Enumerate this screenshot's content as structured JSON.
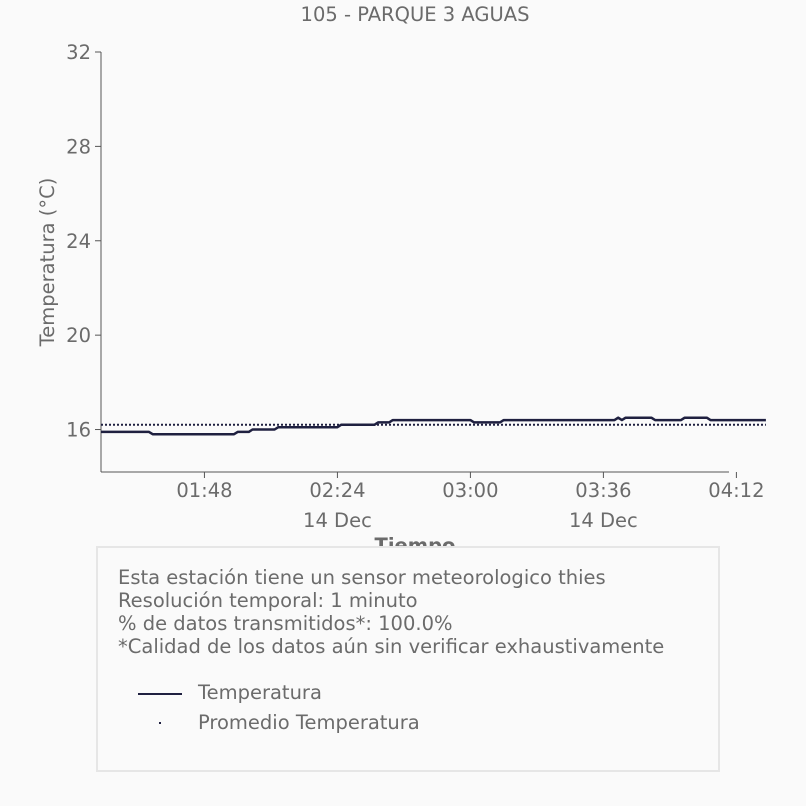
{
  "chart_data": {
    "type": "line",
    "title": "105 - PARQUE 3 AGUAS",
    "xlabel": "Tiempo",
    "ylabel": "Temperatura (°C)",
    "ylim": [
      14.2,
      32
    ],
    "xlim_minutes": [
      80,
      250
    ],
    "yticks": [
      "16",
      "20",
      "24",
      "28",
      "32"
    ],
    "ytick_values": [
      16,
      20,
      24,
      28,
      32
    ],
    "xticks": [
      {
        "label": "01:48",
        "sublabel": "",
        "time": "01:48"
      },
      {
        "label": "02:24",
        "sublabel": "14 Dec",
        "time": "02:24"
      },
      {
        "label": "03:00",
        "sublabel": "",
        "time": "03:00"
      },
      {
        "label": "03:36",
        "sublabel": "14 Dec",
        "time": "03:36"
      },
      {
        "label": "04:12",
        "sublabel": "",
        "time": "04:12"
      }
    ],
    "series": [
      {
        "name": "Temperatura",
        "color": "#1f2040",
        "style": "solid",
        "points": [
          [
            "01:20",
            15.9
          ],
          [
            "01:33",
            15.9
          ],
          [
            "01:34",
            15.8
          ],
          [
            "01:56",
            15.8
          ],
          [
            "01:57",
            15.9
          ],
          [
            "02:00",
            15.9
          ],
          [
            "02:01",
            16.0
          ],
          [
            "02:07",
            16.0
          ],
          [
            "02:08",
            16.1
          ],
          [
            "02:24",
            16.1
          ],
          [
            "02:25",
            16.2
          ],
          [
            "02:34",
            16.2
          ],
          [
            "02:35",
            16.3
          ],
          [
            "02:38",
            16.3
          ],
          [
            "02:39",
            16.4
          ],
          [
            "03:00",
            16.4
          ],
          [
            "03:01",
            16.3
          ],
          [
            "03:08",
            16.3
          ],
          [
            "03:09",
            16.4
          ],
          [
            "03:39",
            16.4
          ],
          [
            "03:40",
            16.5
          ],
          [
            "03:41",
            16.4
          ],
          [
            "03:42",
            16.5
          ],
          [
            "03:49",
            16.5
          ],
          [
            "03:50",
            16.4
          ],
          [
            "03:57",
            16.4
          ],
          [
            "03:58",
            16.5
          ],
          [
            "04:04",
            16.5
          ],
          [
            "04:05",
            16.4
          ],
          [
            "04:20",
            16.4
          ]
        ]
      },
      {
        "name": "Promedio Temperatura",
        "color": "#1f2040",
        "style": "dotted",
        "points": [
          [
            "01:20",
            16.2
          ],
          [
            "04:20",
            16.2
          ]
        ]
      }
    ]
  },
  "info": {
    "line1": "Esta estación tiene un sensor meteorologico thies",
    "line2": "Resolución temporal: 1 minuto",
    "line3": "% de datos transmitidos*: 100.0%",
    "line4": "*Calidad de los datos aún sin verificar exhaustivamente"
  },
  "legend": {
    "item1": "Temperatura",
    "item2": "Promedio Temperatura"
  },
  "colors": {
    "text": "#6b6b6b",
    "series": "#1f2040",
    "axis": "#555555"
  }
}
